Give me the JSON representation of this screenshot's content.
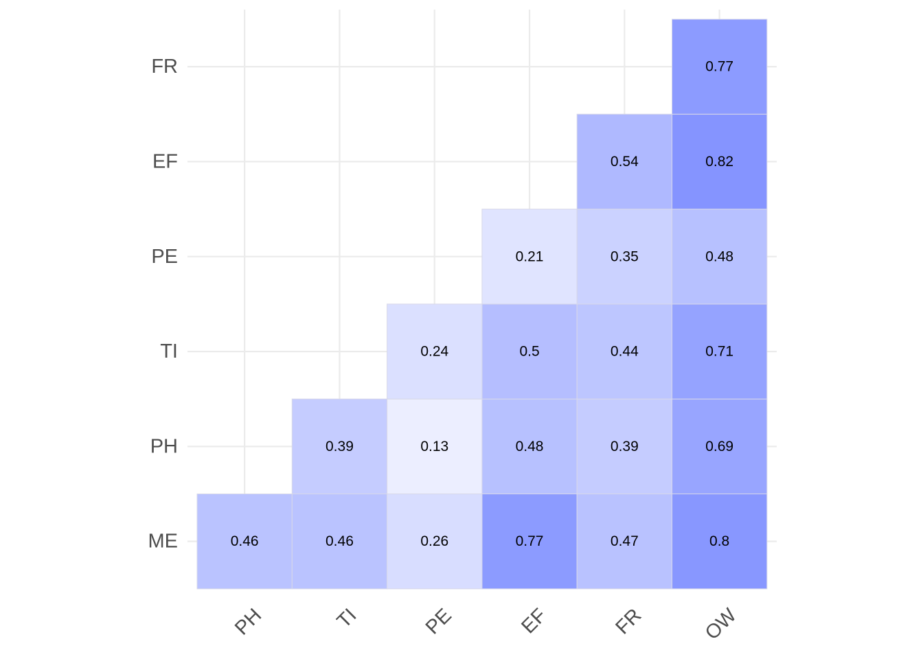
{
  "chart_data": {
    "type": "heatmap",
    "title": "",
    "xlabel": "",
    "ylabel": "",
    "x_categories": [
      "PH",
      "TI",
      "PE",
      "EF",
      "FR",
      "OW"
    ],
    "y_categories": [
      "ME",
      "PH",
      "TI",
      "PE",
      "EF",
      "FR"
    ],
    "cells": [
      {
        "x": "PH",
        "y": "ME",
        "value": 0.46,
        "label": "0.46"
      },
      {
        "x": "TI",
        "y": "ME",
        "value": 0.46,
        "label": "0.46"
      },
      {
        "x": "PE",
        "y": "ME",
        "value": 0.26,
        "label": "0.26"
      },
      {
        "x": "EF",
        "y": "ME",
        "value": 0.77,
        "label": "0.77"
      },
      {
        "x": "FR",
        "y": "ME",
        "value": 0.47,
        "label": "0.47"
      },
      {
        "x": "OW",
        "y": "ME",
        "value": 0.8,
        "label": "0.8"
      },
      {
        "x": "TI",
        "y": "PH",
        "value": 0.39,
        "label": "0.39"
      },
      {
        "x": "PE",
        "y": "PH",
        "value": 0.13,
        "label": "0.13"
      },
      {
        "x": "EF",
        "y": "PH",
        "value": 0.48,
        "label": "0.48"
      },
      {
        "x": "FR",
        "y": "PH",
        "value": 0.39,
        "label": "0.39"
      },
      {
        "x": "OW",
        "y": "PH",
        "value": 0.69,
        "label": "0.69"
      },
      {
        "x": "PE",
        "y": "TI",
        "value": 0.24,
        "label": "0.24"
      },
      {
        "x": "EF",
        "y": "TI",
        "value": 0.5,
        "label": "0.5"
      },
      {
        "x": "FR",
        "y": "TI",
        "value": 0.44,
        "label": "0.44"
      },
      {
        "x": "OW",
        "y": "TI",
        "value": 0.71,
        "label": "0.71"
      },
      {
        "x": "EF",
        "y": "PE",
        "value": 0.21,
        "label": "0.21"
      },
      {
        "x": "FR",
        "y": "PE",
        "value": 0.35,
        "label": "0.35"
      },
      {
        "x": "OW",
        "y": "PE",
        "value": 0.48,
        "label": "0.48"
      },
      {
        "x": "FR",
        "y": "EF",
        "value": 0.54,
        "label": "0.54"
      },
      {
        "x": "OW",
        "y": "EF",
        "value": 0.82,
        "label": "0.82"
      },
      {
        "x": "OW",
        "y": "FR",
        "value": 0.77,
        "label": "0.77"
      }
    ],
    "color_low": "#ffffff",
    "color_high": "#6a7dff",
    "grid": true,
    "legend": "none"
  }
}
